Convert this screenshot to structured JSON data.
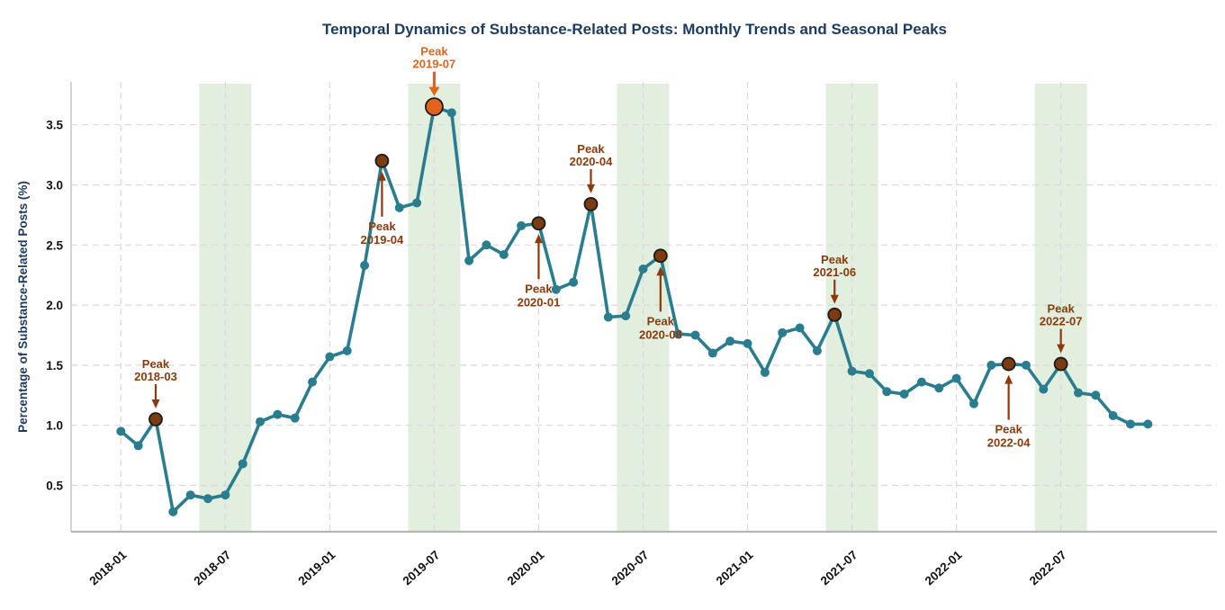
{
  "chart_data": {
    "type": "line",
    "title": "Temporal Dynamics of Substance-Related Posts: Monthly Trends and Seasonal Peaks",
    "ylabel": "Percentage of Substance-Related Posts (%)",
    "xlabel": "",
    "x": [
      "2018-01",
      "2018-02",
      "2018-03",
      "2018-04",
      "2018-05",
      "2018-06",
      "2018-07",
      "2018-08",
      "2018-09",
      "2018-10",
      "2018-11",
      "2018-12",
      "2019-01",
      "2019-02",
      "2019-03",
      "2019-04",
      "2019-05",
      "2019-06",
      "2019-07",
      "2019-08",
      "2019-09",
      "2019-10",
      "2019-11",
      "2019-12",
      "2020-01",
      "2020-02",
      "2020-03",
      "2020-04",
      "2020-05",
      "2020-06",
      "2020-07",
      "2020-08",
      "2020-09",
      "2020-10",
      "2020-11",
      "2020-12",
      "2021-01",
      "2021-02",
      "2021-03",
      "2021-04",
      "2021-05",
      "2021-06",
      "2021-07",
      "2021-08",
      "2021-09",
      "2021-10",
      "2021-11",
      "2021-12",
      "2022-01",
      "2022-02",
      "2022-03",
      "2022-04",
      "2022-05",
      "2022-06",
      "2022-07",
      "2022-08",
      "2022-09",
      "2022-10",
      "2022-11",
      "2022-12"
    ],
    "series": [
      {
        "name": "Percentage of Substance-Related Posts",
        "values": [
          0.95,
          0.83,
          1.05,
          0.28,
          0.42,
          0.39,
          0.42,
          0.68,
          1.03,
          1.09,
          1.06,
          1.36,
          1.57,
          1.62,
          2.33,
          3.2,
          2.81,
          2.85,
          3.65,
          3.6,
          2.37,
          2.5,
          2.42,
          2.66,
          2.68,
          2.13,
          2.19,
          2.84,
          1.9,
          1.91,
          2.3,
          2.41,
          1.76,
          1.75,
          1.6,
          1.7,
          1.68,
          1.44,
          1.77,
          1.81,
          1.62,
          1.92,
          1.45,
          1.43,
          1.28,
          1.26,
          1.36,
          1.31,
          1.39,
          1.18,
          1.5,
          1.51,
          1.5,
          1.3,
          1.51,
          1.27,
          1.25,
          1.08,
          1.01,
          1.01
        ]
      }
    ],
    "y_ticks": [
      "0.5",
      "1.0",
      "1.5",
      "2.0",
      "2.5",
      "3.0",
      "3.5"
    ],
    "x_ticks": [
      "2018-01",
      "2018-07",
      "2019-01",
      "2019-07",
      "2020-01",
      "2020-07",
      "2021-01",
      "2021-07",
      "2022-01",
      "2022-07"
    ],
    "ylim": [
      0.11,
      3.85
    ],
    "grid": true,
    "legend": false,
    "peak_annotations": [
      {
        "label": "Peak",
        "month": "2018-03",
        "value": 1.05,
        "placement": "above",
        "style": "regular"
      },
      {
        "label": "Peak",
        "month": "2019-04",
        "value": 3.2,
        "placement": "below",
        "style": "regular"
      },
      {
        "label": "Peak",
        "month": "2019-07",
        "value": 3.65,
        "placement": "above",
        "style": "highlight"
      },
      {
        "label": "Peak",
        "month": "2020-01",
        "value": 2.68,
        "placement": "below",
        "style": "regular"
      },
      {
        "label": "Peak",
        "month": "2020-04",
        "value": 2.84,
        "placement": "above",
        "style": "regular"
      },
      {
        "label": "Peak",
        "month": "2020-08",
        "value": 2.41,
        "placement": "below",
        "style": "regular"
      },
      {
        "label": "Peak",
        "month": "2021-06",
        "value": 1.92,
        "placement": "above",
        "style": "regular"
      },
      {
        "label": "Peak",
        "month": "2022-04",
        "value": 1.51,
        "placement": "below",
        "style": "regular"
      },
      {
        "label": "Peak",
        "month": "2022-07",
        "value": 1.51,
        "placement": "above",
        "style": "regular"
      }
    ],
    "seasonal_bands": [
      {
        "start": "2018-06",
        "end": "2018-08"
      },
      {
        "start": "2019-06",
        "end": "2019-08"
      },
      {
        "start": "2020-06",
        "end": "2020-08"
      },
      {
        "start": "2021-06",
        "end": "2021-08"
      },
      {
        "start": "2022-06",
        "end": "2022-08"
      }
    ],
    "colors": {
      "line": "#2a7d8e",
      "marker": "#2a7d8e",
      "peak_marker": "#7d3c10",
      "peak_label": "#8b3a0b",
      "highlight_peak": "#e2641c",
      "seasonal_band": "#e2efdf",
      "grid": "#d9d9d9",
      "spine": "#c6c6c6",
      "bottom_spine": "#b5b5b5",
      "title": "#1d3a5f",
      "axis_label": "#1d3a5f",
      "tick_label": "#111111"
    }
  }
}
